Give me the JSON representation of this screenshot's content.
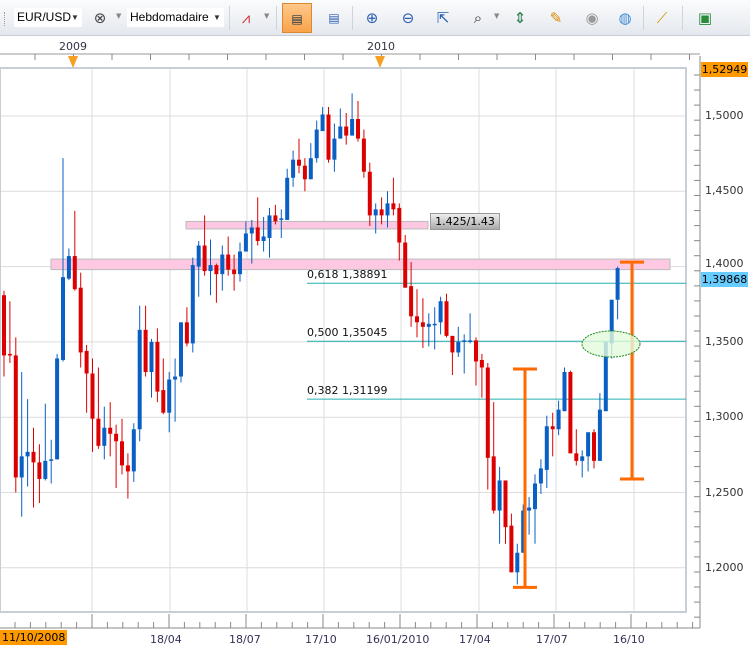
{
  "toolbar": {
    "symbol": "EUR/USD",
    "period": "Hebdomadaire",
    "icons": [
      "link-remove-icon",
      "chart-style-icon",
      "bid-chart-icon",
      "ask-chart-icon",
      "zoom-in-icon",
      "zoom-out-icon",
      "zoom-cursor-icon",
      "zoom-range-icon",
      "vertical-fit-icon",
      "edit-template-icon",
      "eye-icon",
      "globe-icon",
      "ruler-icon",
      "add-image-icon"
    ]
  },
  "top_axis": {
    "years": [
      "2009",
      "2010"
    ]
  },
  "price_axis": {
    "labels": [
      "1,5000",
      "1,4500",
      "1,4000",
      "1,3500",
      "1,3000",
      "1,2500",
      "1,2000"
    ],
    "high_marker": "1,52949",
    "current_marker": "1,39868"
  },
  "time_axis": {
    "start_label": "11/10/2008",
    "labels": [
      "18/04",
      "18/07",
      "17/10",
      "16/01/2010",
      "17/04",
      "17/07",
      "16/10"
    ]
  },
  "annotations": {
    "zone_label": "1.425/1.43",
    "zones": [
      {
        "low": 1.425,
        "high": 1.43
      },
      {
        "low": 1.398,
        "high": 1.405
      }
    ],
    "fib": [
      {
        "ratio": "0,618",
        "price": "1,38891",
        "value": 1.38891
      },
      {
        "ratio": "0,500",
        "price": "1,35045",
        "value": 1.35045
      },
      {
        "ratio": "0,382",
        "price": "1,31199",
        "value": 1.31199
      }
    ],
    "ranges": [
      {
        "high": 1.332,
        "low": 1.187
      },
      {
        "high": 1.403,
        "low": 1.259
      }
    ]
  },
  "colors": {
    "up": "#0a5fc4",
    "down": "#dd0000",
    "fib": "#20b0b0",
    "zone": "#ffc8e2",
    "range": "#ff6a00",
    "ellipse": "#e4fbdc",
    "high_marker": "#ff9900",
    "current_marker": "#66ccff"
  },
  "chart_data": {
    "type": "candlestick",
    "title": "",
    "ylim": [
      1.17,
      1.535
    ],
    "ohlc": [
      [
        1.381,
        1.384,
        1.327,
        1.341
      ],
      [
        1.342,
        1.377,
        1.336,
        1.341
      ],
      [
        1.341,
        1.353,
        1.25,
        1.26
      ],
      [
        1.26,
        1.33,
        1.234,
        1.274
      ],
      [
        1.274,
        1.312,
        1.254,
        1.277
      ],
      [
        1.277,
        1.293,
        1.24,
        1.27
      ],
      [
        1.27,
        1.282,
        1.243,
        1.259
      ],
      [
        1.259,
        1.309,
        1.258,
        1.271
      ],
      [
        1.271,
        1.285,
        1.256,
        1.272
      ],
      [
        1.272,
        1.342,
        1.272,
        1.339
      ],
      [
        1.338,
        1.472,
        1.337,
        1.393
      ],
      [
        1.392,
        1.412,
        1.391,
        1.407
      ],
      [
        1.407,
        1.437,
        1.384,
        1.385
      ],
      [
        1.386,
        1.396,
        1.333,
        1.343
      ],
      [
        1.344,
        1.348,
        1.303,
        1.329
      ],
      [
        1.329,
        1.339,
        1.277,
        1.299
      ],
      [
        1.299,
        1.333,
        1.279,
        1.281
      ],
      [
        1.281,
        1.307,
        1.272,
        1.293
      ],
      [
        1.293,
        1.31,
        1.274,
        1.289
      ],
      [
        1.289,
        1.295,
        1.253,
        1.284
      ],
      [
        1.284,
        1.299,
        1.262,
        1.268
      ],
      [
        1.268,
        1.276,
        1.246,
        1.264
      ],
      [
        1.264,
        1.296,
        1.257,
        1.292
      ],
      [
        1.292,
        1.374,
        1.284,
        1.358
      ],
      [
        1.358,
        1.374,
        1.327,
        1.33
      ],
      [
        1.33,
        1.352,
        1.313,
        1.35
      ],
      [
        1.35,
        1.359,
        1.31,
        1.317
      ],
      [
        1.318,
        1.339,
        1.302,
        1.303
      ],
      [
        1.303,
        1.33,
        1.29,
        1.325
      ],
      [
        1.325,
        1.339,
        1.297,
        1.327
      ],
      [
        1.327,
        1.363,
        1.323,
        1.363
      ],
      [
        1.363,
        1.373,
        1.347,
        1.349
      ],
      [
        1.349,
        1.406,
        1.343,
        1.401
      ],
      [
        1.4,
        1.417,
        1.38,
        1.414
      ],
      [
        1.414,
        1.434,
        1.394,
        1.397
      ],
      [
        1.397,
        1.418,
        1.381,
        1.401
      ],
      [
        1.401,
        1.402,
        1.376,
        1.395
      ],
      [
        1.395,
        1.414,
        1.384,
        1.408
      ],
      [
        1.408,
        1.42,
        1.394,
        1.398
      ],
      [
        1.398,
        1.408,
        1.384,
        1.395
      ],
      [
        1.395,
        1.416,
        1.39,
        1.41
      ],
      [
        1.41,
        1.43,
        1.41,
        1.422
      ],
      [
        1.422,
        1.431,
        1.402,
        1.426
      ],
      [
        1.426,
        1.446,
        1.414,
        1.417
      ],
      [
        1.417,
        1.433,
        1.41,
        1.42
      ],
      [
        1.419,
        1.439,
        1.406,
        1.434
      ],
      [
        1.434,
        1.441,
        1.428,
        1.43
      ],
      [
        1.431,
        1.438,
        1.419,
        1.432
      ],
      [
        1.431,
        1.465,
        1.431,
        1.459
      ],
      [
        1.459,
        1.477,
        1.453,
        1.471
      ],
      [
        1.471,
        1.485,
        1.462,
        1.467
      ],
      [
        1.467,
        1.472,
        1.45,
        1.458
      ],
      [
        1.458,
        1.482,
        1.458,
        1.472
      ],
      [
        1.472,
        1.497,
        1.469,
        1.491
      ],
      [
        1.49,
        1.506,
        1.49,
        1.501
      ],
      [
        1.501,
        1.506,
        1.469,
        1.471
      ],
      [
        1.471,
        1.495,
        1.463,
        1.485
      ],
      [
        1.485,
        1.505,
        1.485,
        1.493
      ],
      [
        1.493,
        1.502,
        1.481,
        1.487
      ],
      [
        1.487,
        1.515,
        1.487,
        1.498
      ],
      [
        1.498,
        1.51,
        1.483,
        1.485
      ],
      [
        1.485,
        1.491,
        1.459,
        1.463
      ],
      [
        1.463,
        1.469,
        1.427,
        1.434
      ],
      [
        1.434,
        1.442,
        1.422,
        1.438
      ],
      [
        1.438,
        1.446,
        1.428,
        1.434
      ],
      [
        1.434,
        1.45,
        1.426,
        1.442
      ],
      [
        1.442,
        1.459,
        1.434,
        1.438
      ],
      [
        1.439,
        1.442,
        1.404,
        1.416
      ],
      [
        1.416,
        1.421,
        1.386,
        1.386
      ],
      [
        1.387,
        1.403,
        1.36,
        1.367
      ],
      [
        1.367,
        1.385,
        1.353,
        1.363
      ],
      [
        1.363,
        1.379,
        1.346,
        1.36
      ],
      [
        1.36,
        1.369,
        1.347,
        1.362
      ],
      [
        1.362,
        1.373,
        1.345,
        1.362
      ],
      [
        1.363,
        1.38,
        1.355,
        1.377
      ],
      [
        1.377,
        1.382,
        1.353,
        1.354
      ],
      [
        1.354,
        1.354,
        1.328,
        1.343
      ],
      [
        1.343,
        1.36,
        1.34,
        1.35
      ],
      [
        1.35,
        1.355,
        1.329,
        1.351
      ],
      [
        1.35,
        1.369,
        1.349,
        1.351
      ],
      [
        1.351,
        1.353,
        1.321,
        1.337
      ],
      [
        1.338,
        1.342,
        1.313,
        1.333
      ],
      [
        1.333,
        1.336,
        1.252,
        1.273
      ],
      [
        1.274,
        1.31,
        1.236,
        1.238
      ],
      [
        1.238,
        1.267,
        1.216,
        1.258
      ],
      [
        1.258,
        1.258,
        1.216,
        1.227
      ],
      [
        1.228,
        1.236,
        1.197,
        1.197
      ],
      [
        1.197,
        1.216,
        1.189,
        1.21
      ],
      [
        1.21,
        1.242,
        1.21,
        1.238
      ],
      [
        1.238,
        1.247,
        1.222,
        1.24
      ],
      [
        1.239,
        1.262,
        1.216,
        1.256
      ],
      [
        1.256,
        1.272,
        1.249,
        1.266
      ],
      [
        1.265,
        1.301,
        1.253,
        1.294
      ],
      [
        1.294,
        1.303,
        1.274,
        1.292
      ],
      [
        1.292,
        1.311,
        1.288,
        1.305
      ],
      [
        1.304,
        1.333,
        1.304,
        1.33
      ],
      [
        1.33,
        1.331,
        1.276,
        1.276
      ],
      [
        1.276,
        1.292,
        1.268,
        1.271
      ],
      [
        1.271,
        1.278,
        1.26,
        1.274
      ],
      [
        1.274,
        1.29,
        1.264,
        1.29
      ],
      [
        1.29,
        1.292,
        1.266,
        1.271
      ],
      [
        1.271,
        1.316,
        1.271,
        1.305
      ],
      [
        1.304,
        1.35,
        1.304,
        1.35
      ],
      [
        1.349,
        1.378,
        1.339,
        1.378
      ],
      [
        1.378,
        1.4,
        1.365,
        1.399
      ]
    ]
  }
}
